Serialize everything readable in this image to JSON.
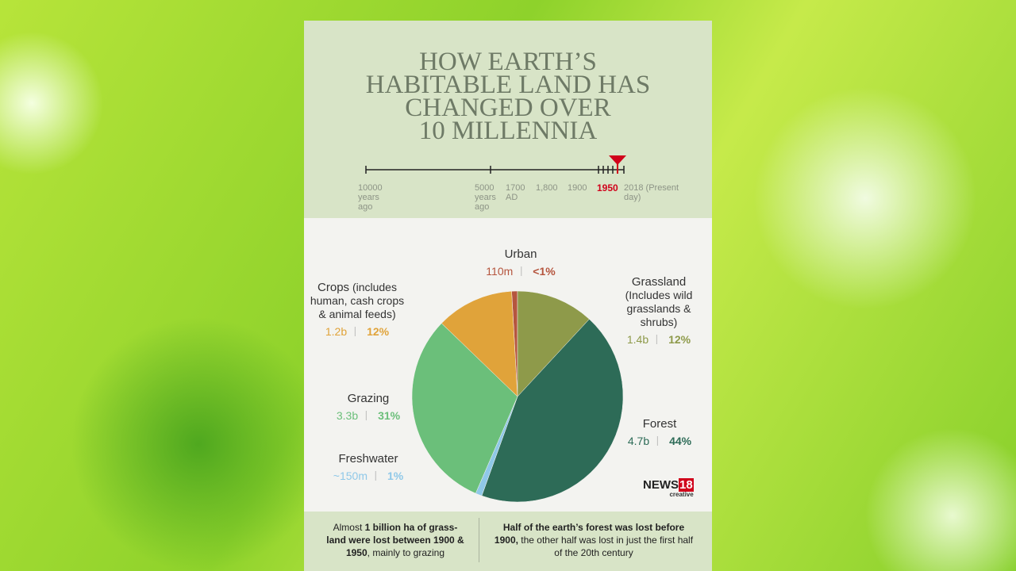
{
  "header": {
    "title": [
      "HOW EARTH’S",
      "HABITABLE LAND HAS",
      "CHANGED OVER",
      "10 MILLENNIA"
    ]
  },
  "timeline": {
    "labels": [
      "10000 years ago",
      "5000 years ago",
      "1700 AD",
      "1,800",
      "1900",
      "1950",
      "2018 (Present day)"
    ],
    "highlight_index": 5
  },
  "chart_data": {
    "type": "pie",
    "categories": [
      "Urban",
      "Grassland",
      "Forest",
      "Freshwater",
      "Grazing",
      "Crops"
    ],
    "category_notes": [
      null,
      "(Includes wild grasslands & shrubs)",
      null,
      null,
      null,
      "(includes human, cash crops & animal feeds)"
    ],
    "values": [
      0.9,
      12,
      44,
      1,
      31,
      12
    ],
    "value_labels": [
      "<1%",
      "12%",
      "44%",
      "1%",
      "31%",
      "12%"
    ],
    "area_labels": [
      "110m",
      "1.4b",
      "4.7b",
      "~150m",
      "3.3b",
      "1.2b"
    ],
    "colors": [
      "#b5553e",
      "#8e9a4a",
      "#2d6b57",
      "#8fc8e8",
      "#6bbf7a",
      "#e0a33a"
    ]
  },
  "logo": {
    "name": "NEWS",
    "number": "18",
    "sub": "creative"
  },
  "footer": {
    "left": [
      {
        "text": "Almost ",
        "bold": false
      },
      {
        "text": "1 billion ha of grass-land were lost between 1900 & 1950",
        "bold": true
      },
      {
        "text": ", mainly to grazing",
        "bold": false
      }
    ],
    "right": [
      {
        "text": "Half of the earth’s forest was lost before 1900,",
        "bold": true
      },
      {
        "text": " the other half was lost in just the first half of the 20th century",
        "bold": false
      }
    ]
  }
}
